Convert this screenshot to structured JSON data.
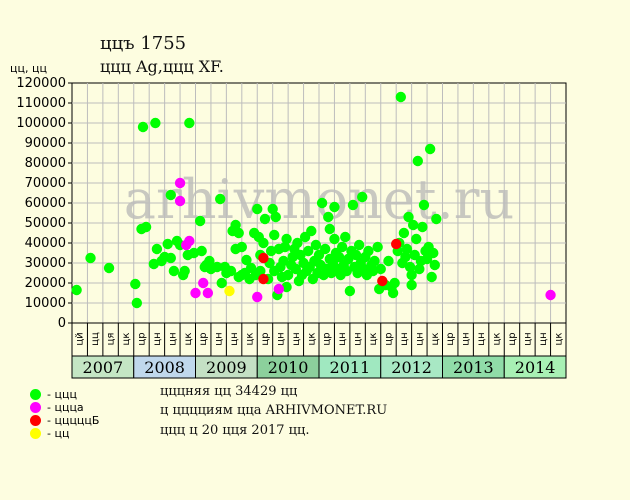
{
  "header": {
    "title": "ццъ 1755",
    "subtitle": "ццц Ag,ццц XF.",
    "y_unit": "цц, цц"
  },
  "watermark": "arhivmonet.ru",
  "legend": [
    {
      "label": "- ццц",
      "color": "#00ff00"
    },
    {
      "label": "- ццца",
      "color": "#ff00ff"
    },
    {
      "label": "- цццццБ",
      "color": "#ff0000"
    },
    {
      "label": "- цц",
      "color": "#ffff00"
    }
  ],
  "notes": [
    "цццняя цц 34429 цц",
    "ц цццциям ццa ARHIVMONET.RU",
    "ццц ц 20 цця 2017 цц."
  ],
  "chart_data": {
    "type": "scatter",
    "ylim": [
      0,
      120000
    ],
    "yticks": [
      "0",
      "10000",
      "20000",
      "30000",
      "40000",
      "50000",
      "60000",
      "70000",
      "80000",
      "90000",
      "100000",
      "110000",
      "120000"
    ],
    "years": [
      "2007",
      "2008",
      "2009",
      "2010",
      "2011",
      "2012",
      "2013",
      "2014"
    ],
    "quarter_labels": [
      "цй",
      "цц",
      "ця",
      "цк",
      "цр",
      "цн",
      "цн",
      "цк",
      "цр",
      "цн",
      "цн",
      "цк",
      "цр",
      "цн",
      "цн",
      "цк",
      "цр",
      "цн",
      "цн",
      "цк",
      "цр",
      "цн",
      "цн",
      "цк",
      "цр",
      "цн",
      "цн",
      "цк",
      "цр",
      "цн",
      "цн",
      "цк"
    ],
    "xlim": [
      0,
      32
    ],
    "grid": true,
    "series": [
      {
        "color": "#00ff00",
        "points": [
          [
            0.3,
            16500
          ],
          [
            1.2,
            32500
          ],
          [
            2.4,
            27500
          ],
          [
            4.1,
            19500
          ],
          [
            4.2,
            10000
          ],
          [
            4.5,
            47000
          ],
          [
            4.6,
            98000
          ],
          [
            4.8,
            48000
          ],
          [
            5.4,
            100000
          ],
          [
            5.3,
            29500
          ],
          [
            5.5,
            37000
          ],
          [
            5.8,
            31000
          ],
          [
            6.0,
            33000
          ],
          [
            6.2,
            39500
          ],
          [
            6.4,
            64000
          ],
          [
            6.4,
            32500
          ],
          [
            6.6,
            26000
          ],
          [
            6.8,
            41000
          ],
          [
            7.0,
            39000
          ],
          [
            7.2,
            24000
          ],
          [
            7.3,
            26000
          ],
          [
            7.5,
            34000
          ],
          [
            7.6,
            100000
          ],
          [
            7.9,
            35000
          ],
          [
            8.3,
            51000
          ],
          [
            8.4,
            36000
          ],
          [
            8.6,
            28000
          ],
          [
            8.7,
            29000
          ],
          [
            8.9,
            31000
          ],
          [
            9.0,
            27000
          ],
          [
            9.4,
            28000
          ],
          [
            9.6,
            62000
          ],
          [
            9.7,
            20000
          ],
          [
            9.9,
            28000
          ],
          [
            10.0,
            25000
          ],
          [
            10.3,
            26000
          ],
          [
            10.4,
            46000
          ],
          [
            10.6,
            49000
          ],
          [
            10.6,
            37000
          ],
          [
            10.8,
            23000
          ],
          [
            10.8,
            45000
          ],
          [
            11.0,
            38000
          ],
          [
            11.0,
            24000
          ],
          [
            11.2,
            25000
          ],
          [
            11.3,
            31500
          ],
          [
            11.5,
            22000
          ],
          [
            11.6,
            27500
          ],
          [
            11.8,
            45000
          ],
          [
            11.9,
            24000
          ],
          [
            12.0,
            57000
          ],
          [
            12.1,
            43000
          ],
          [
            12.2,
            34000
          ],
          [
            12.2,
            26000
          ],
          [
            12.4,
            40000
          ],
          [
            12.5,
            52000
          ],
          [
            12.7,
            22000
          ],
          [
            12.8,
            30000
          ],
          [
            12.9,
            36000
          ],
          [
            13.0,
            57000
          ],
          [
            13.1,
            26000
          ],
          [
            13.1,
            44000
          ],
          [
            13.2,
            53000
          ],
          [
            13.3,
            14000
          ],
          [
            13.4,
            37000
          ],
          [
            13.5,
            28000
          ],
          [
            13.6,
            23000
          ],
          [
            13.7,
            31000
          ],
          [
            13.8,
            38000
          ],
          [
            13.9,
            42000
          ],
          [
            13.9,
            18000
          ],
          [
            14.0,
            24000
          ],
          [
            14.2,
            29000
          ],
          [
            14.3,
            33000
          ],
          [
            14.4,
            37000
          ],
          [
            14.5,
            27000
          ],
          [
            14.6,
            40000
          ],
          [
            14.7,
            21000
          ],
          [
            14.8,
            34000
          ],
          [
            14.9,
            24000
          ],
          [
            15.0,
            30000
          ],
          [
            15.1,
            43000
          ],
          [
            15.2,
            26000
          ],
          [
            15.3,
            36000
          ],
          [
            15.4,
            28000
          ],
          [
            15.5,
            46000
          ],
          [
            15.6,
            22000
          ],
          [
            15.7,
            31000
          ],
          [
            15.8,
            39000
          ],
          [
            15.9,
            25000
          ],
          [
            16.0,
            34000
          ],
          [
            16.1,
            29000
          ],
          [
            16.2,
            60000
          ],
          [
            16.3,
            24000
          ],
          [
            16.4,
            37000
          ],
          [
            16.5,
            27000
          ],
          [
            16.6,
            53000
          ],
          [
            16.7,
            32000
          ],
          [
            16.7,
            47000
          ],
          [
            16.8,
            25000
          ],
          [
            16.9,
            30000
          ],
          [
            17.0,
            42000
          ],
          [
            17.0,
            58000
          ],
          [
            17.1,
            35000
          ],
          [
            17.2,
            27000
          ],
          [
            17.3,
            33000
          ],
          [
            17.4,
            24000
          ],
          [
            17.5,
            38000
          ],
          [
            17.6,
            29000
          ],
          [
            17.7,
            43000
          ],
          [
            17.8,
            26000
          ],
          [
            17.9,
            32000
          ],
          [
            18.0,
            16000
          ],
          [
            18.1,
            36000
          ],
          [
            18.2,
            59000
          ],
          [
            18.3,
            28000
          ],
          [
            18.4,
            34000
          ],
          [
            18.5,
            25000
          ],
          [
            18.6,
            39000
          ],
          [
            18.7,
            30000
          ],
          [
            18.8,
            63000
          ],
          [
            18.9,
            27000
          ],
          [
            19.0,
            33000
          ],
          [
            19.1,
            24000
          ],
          [
            19.2,
            36000
          ],
          [
            19.4,
            29000
          ],
          [
            19.5,
            26000
          ],
          [
            19.6,
            31000
          ],
          [
            19.8,
            38000
          ],
          [
            19.9,
            17000
          ],
          [
            20.0,
            27000
          ],
          [
            20.3,
            19000
          ],
          [
            20.5,
            31000
          ],
          [
            20.7,
            18000
          ],
          [
            20.8,
            15000
          ],
          [
            20.9,
            20000
          ],
          [
            21.1,
            36000
          ],
          [
            21.2,
            40000
          ],
          [
            21.3,
            113000
          ],
          [
            21.4,
            30000
          ],
          [
            21.5,
            45000
          ],
          [
            21.6,
            33000
          ],
          [
            21.7,
            37000
          ],
          [
            21.8,
            53000
          ],
          [
            21.9,
            28000
          ],
          [
            22.0,
            24000
          ],
          [
            22.0,
            19000
          ],
          [
            22.1,
            49000
          ],
          [
            22.2,
            34000
          ],
          [
            22.3,
            42000
          ],
          [
            22.4,
            81000
          ],
          [
            22.5,
            27000
          ],
          [
            22.6,
            31000
          ],
          [
            22.7,
            48000
          ],
          [
            22.8,
            59000
          ],
          [
            22.9,
            36000
          ],
          [
            23.0,
            32000
          ],
          [
            23.1,
            38000
          ],
          [
            23.2,
            87000
          ],
          [
            23.3,
            23000
          ],
          [
            23.4,
            35000
          ],
          [
            23.5,
            29000
          ],
          [
            23.6,
            52000
          ]
        ]
      },
      {
        "color": "#ff00ff",
        "points": [
          [
            7.0,
            70000
          ],
          [
            7.0,
            61000
          ],
          [
            7.4,
            39000
          ],
          [
            7.6,
            41000
          ],
          [
            8.0,
            15000
          ],
          [
            8.5,
            20000
          ],
          [
            8.8,
            15000
          ],
          [
            12.0,
            13000
          ],
          [
            13.4,
            17000
          ],
          [
            31.0,
            14000
          ]
        ]
      },
      {
        "color": "#ff0000",
        "points": [
          [
            12.4,
            32500
          ],
          [
            12.4,
            22000
          ],
          [
            20.1,
            21000
          ],
          [
            21.0,
            39500
          ]
        ]
      },
      {
        "color": "#ffff00",
        "points": [
          [
            10.2,
            16000
          ]
        ]
      }
    ]
  }
}
